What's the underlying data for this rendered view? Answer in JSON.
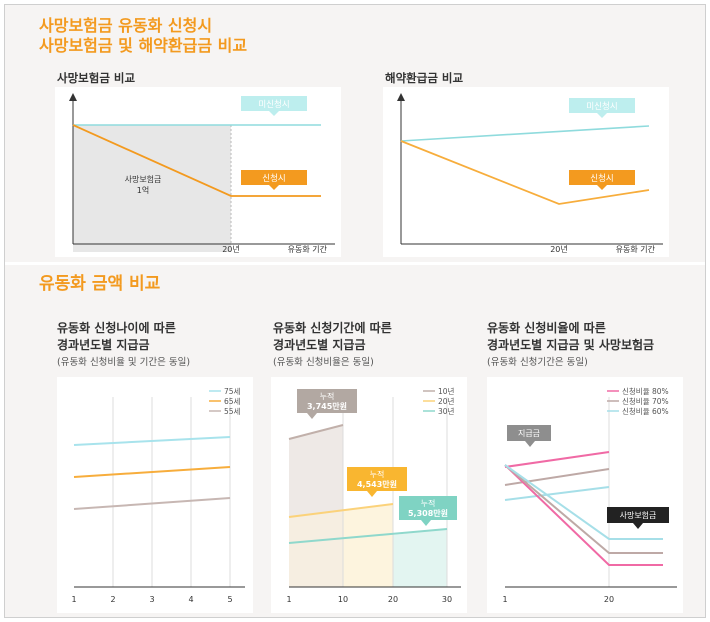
{
  "header": {
    "title_line1": "사망보험금 유동화 신청시",
    "title_line2": "사망보험금 및 해약환급금 비교"
  },
  "section2_title": "유동화 금액 비교",
  "colors": {
    "orange": "#f39a1f",
    "teal": "#7fd8d9",
    "teal_label": "#bdeeee",
    "gray_label": "#b2a8a2",
    "pink": "#f06aa5",
    "dark": "#222222"
  },
  "chart_data": [
    {
      "type": "line",
      "title": "사망보험금 비교",
      "xlabel": "유동화 기간",
      "x_ticks": [
        "20년"
      ],
      "series": [
        {
          "name": "미신청시",
          "values": [
            1.0,
            1.0
          ]
        },
        {
          "name": "신청시",
          "values": [
            1.0,
            0.45,
            0.45
          ]
        }
      ],
      "annotations": [
        "사망보험금",
        "1억"
      ],
      "shaded_area": "0–20년 (회색)",
      "grid": false
    },
    {
      "type": "line",
      "title": "해약환급금 비교",
      "xlabel": "유동화 기간",
      "x_ticks": [
        "20년"
      ],
      "series": [
        {
          "name": "미신청시",
          "values": [
            0.75,
            1.0
          ]
        },
        {
          "name": "신청시",
          "values": [
            0.75,
            0.3,
            0.42
          ]
        }
      ],
      "grid": false
    },
    {
      "type": "line",
      "title": "유동화 신청나이에 따른\n경과년도별 지급금",
      "subtitle": "(유동화 신청비율 및 기간은 동일)",
      "x": [
        1,
        2,
        3,
        4,
        5
      ],
      "series": [
        {
          "name": "75세",
          "color": "#a8e3ec",
          "values": [
            0.79,
            0.8,
            0.81,
            0.82,
            0.83
          ]
        },
        {
          "name": "65세",
          "color": "#f7ad3c",
          "values": [
            0.6,
            0.61,
            0.62,
            0.63,
            0.64
          ]
        },
        {
          "name": "55세",
          "color": "#c7b7b3",
          "values": [
            0.39,
            0.4,
            0.41,
            0.42,
            0.43
          ]
        }
      ],
      "legend": "top-right",
      "grid": true
    },
    {
      "type": "line",
      "title": "유동화 신청기간에 따른\n경과년도별 지급금",
      "subtitle": "(유동화 신청비율은 동일)",
      "x_ticks": [
        1,
        10,
        20,
        30
      ],
      "series": [
        {
          "name": "10년",
          "color": "#c1b0aa",
          "x": [
            1,
            10
          ],
          "values": [
            0.76,
            0.84
          ]
        },
        {
          "name": "20년",
          "color": "#fbd27a",
          "x": [
            1,
            20
          ],
          "values": [
            0.37,
            0.43
          ]
        },
        {
          "name": "30년",
          "color": "#8fd8cc",
          "x": [
            1,
            30
          ],
          "values": [
            0.21,
            0.29
          ]
        }
      ],
      "callouts": [
        {
          "label": "누적",
          "value": "3,745만원"
        },
        {
          "label": "누적",
          "value": "4,543만원"
        },
        {
          "label": "누적",
          "value": "5,308만원"
        }
      ],
      "legend": "top-right",
      "grid": true
    },
    {
      "type": "line",
      "title": "유동화 신청비율에 따른\n경과년도별 지급금 및 사망보험금",
      "subtitle": "(유동화 신청기간은 동일)",
      "x_ticks": [
        1,
        20
      ],
      "series": [
        {
          "name": "신청비율 80%",
          "color": "#f06aa5"
        },
        {
          "name": "신청비율 70%",
          "color": "#bea9a6"
        },
        {
          "name": "신청비율 60%",
          "color": "#a6dfe8"
        }
      ],
      "callouts": [
        "지급금",
        "사망보험금"
      ],
      "legend": "top-right",
      "grid": true
    }
  ]
}
